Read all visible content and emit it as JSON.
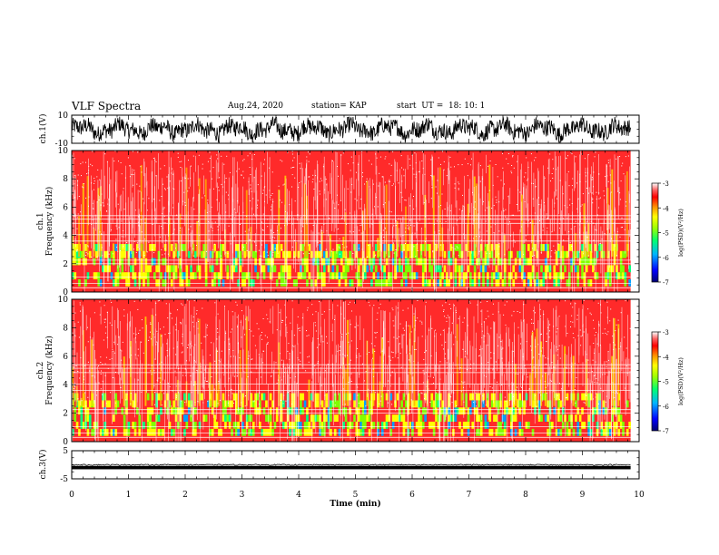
{
  "header": {
    "title": "VLF Spectra",
    "date": "Aug.24, 2020",
    "station": "station= KAP",
    "start": "start  UT =  18: 10: 1"
  },
  "colors": {
    "palette": [
      "#000080",
      "#0000ff",
      "#00a0ff",
      "#00ff80",
      "#80ff00",
      "#ffff00",
      "#ffa000",
      "#ff0000",
      "#ff3030",
      "#ffd8d8",
      "#ffffff"
    ]
  },
  "chart_data": [
    {
      "type": "line",
      "ylabel": "ch.1(V)",
      "yticks": [
        "10",
        "-10"
      ],
      "ylim": [
        -10,
        10
      ],
      "xlim": [
        0,
        10
      ],
      "description_of_series": "dense waveform between about -9 and 8 V over 0 to 9.85 min"
    },
    {
      "type": "heatmap",
      "ylabel": "ch.1\nFrequency (kHz)",
      "ylabel_line1": "ch.1",
      "ylabel_line2": "Frequency (kHz)",
      "yticks": [
        "0",
        "2",
        "4",
        "6",
        "8",
        "10"
      ],
      "ylim": [
        0,
        10
      ],
      "xlim": [
        0,
        10
      ],
      "colorbar": {
        "label": "log(PSD)(V²/Hz)",
        "ticks": [
          "-3",
          "-4",
          "-5",
          "-6",
          "-7"
        ],
        "range": [
          -7,
          -3
        ]
      }
    },
    {
      "type": "heatmap",
      "ylabel_line1": "ch.2",
      "ylabel_line2": "Frequency (kHz)",
      "yticks": [
        "0",
        "2",
        "4",
        "6",
        "8",
        "10"
      ],
      "ylim": [
        0,
        10
      ],
      "xlim": [
        0,
        10
      ],
      "colorbar": {
        "label": "log(PSD)(V²/Hz)",
        "ticks": [
          "-3",
          "-4",
          "-5",
          "-6",
          "-7"
        ],
        "range": [
          -7,
          -3
        ]
      }
    },
    {
      "type": "line",
      "ylabel": "ch.3(V)",
      "yticks": [
        "5",
        "-5"
      ],
      "ylim": [
        -5,
        5
      ],
      "xlim": [
        0,
        10
      ],
      "xticks": [
        "0",
        "1",
        "2",
        "3",
        "4",
        "5",
        "6",
        "7",
        "8",
        "9",
        "10"
      ],
      "xlabel": "Time  (min)",
      "description_of_series": "narrow band near -1 V"
    }
  ]
}
